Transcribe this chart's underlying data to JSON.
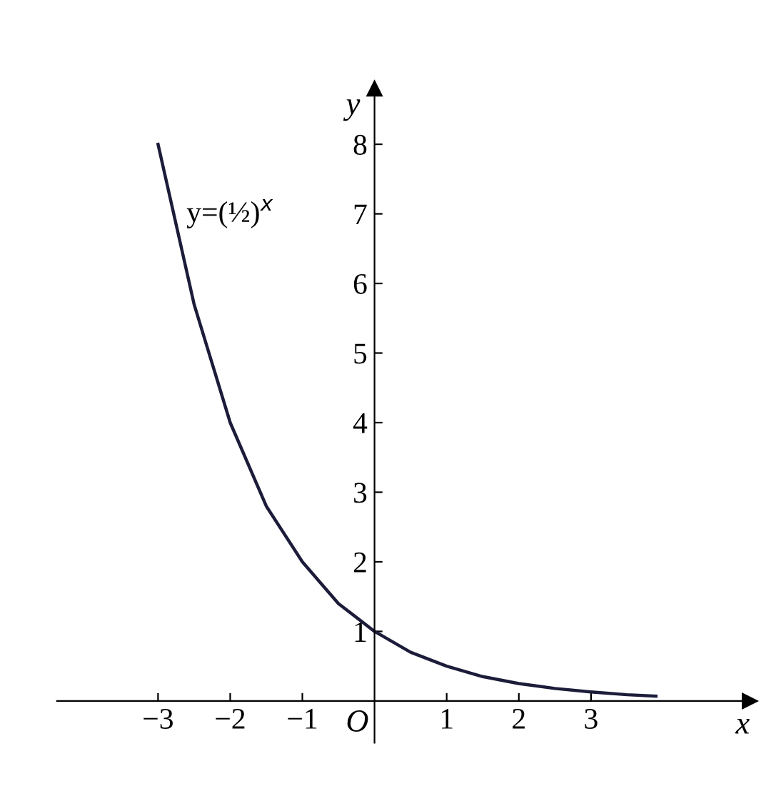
{
  "chart_data": {
    "type": "line",
    "xlabel": "x",
    "ylabel": "y",
    "x": [
      -3,
      -2.5,
      -2,
      -1.5,
      -1,
      -0.5,
      0,
      0.5,
      1,
      1.5,
      2,
      2.5,
      3,
      3.5,
      3.9
    ],
    "series": [
      {
        "color": "#1c1c3a",
        "values": [
          8,
          5.7,
          4,
          2.8,
          2,
          1.4,
          1,
          0.7,
          0.5,
          0.35,
          0.25,
          0.18,
          0.13,
          0.09,
          0.07
        ]
      }
    ],
    "xlim": [
      -4.4,
      5.2
    ],
    "ylim": [
      -0.6,
      8.8
    ],
    "xticks": [
      {
        "value": -3,
        "label": "−3"
      },
      {
        "value": -2,
        "label": "−2"
      },
      {
        "value": -1,
        "label": "−1"
      },
      1,
      2,
      3
    ],
    "yticks": [
      1,
      2,
      3,
      4,
      5,
      6,
      7,
      8
    ],
    "annotations": [
      "y=(½)$^{x}$",
      "O"
    ],
    "grid": false,
    "marker": "none",
    "line_style": "solid"
  }
}
